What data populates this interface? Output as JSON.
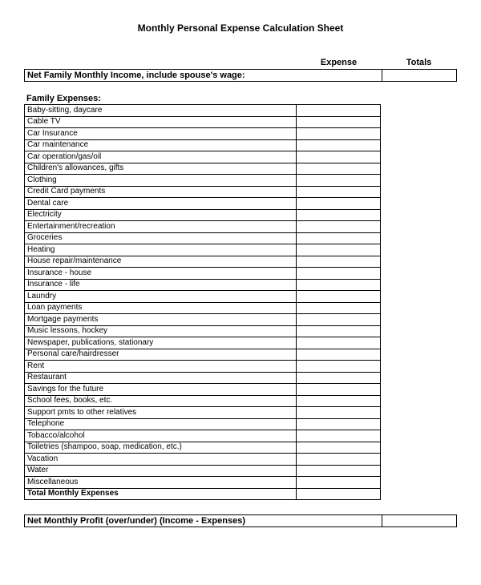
{
  "title": "Monthly Personal Expense Calculation Sheet",
  "headers": {
    "expense": "Expense",
    "totals": "Totals"
  },
  "income": {
    "label": "Net Family Monthly Income, include spouse's wage:"
  },
  "section": {
    "title": "Family Expenses:"
  },
  "expenses": [
    "Baby-sitting, daycare",
    "Cable TV",
    "Car Insurance",
    "Car maintenance",
    "Car operation/gas/oil",
    "Children's allowances, gifts",
    "Clothing",
    "Credit Card payments",
    "Dental care",
    "Electricity",
    "Entertainment/recreation",
    "Groceries",
    "Heating",
    "House repair/maintenance",
    "Insurance - house",
    "Insurance - life",
    "Laundry",
    "Loan payments",
    "Mortgage payments",
    "Music lessons, hockey",
    "Newspaper, publications, stationary",
    "Personal care/hairdresser",
    "Rent",
    "Restaurant",
    "Savings for the future",
    "School fees, books, etc.",
    "Support pmts to other relatives",
    "Telephone",
    "Tobacco/alcohol",
    "Toiletries (shampoo, soap, medication, etc.)",
    "Vacation",
    "Water",
    "Miscellaneous"
  ],
  "totals": {
    "monthlyExpenses": "Total Monthly Expenses"
  },
  "profit": {
    "label": "Net Monthly Profit (over/under)  (Income - Expenses)"
  },
  "style": {
    "type": "table",
    "background_color": "#ffffff",
    "text_color": "#000000",
    "border_color": "#000000",
    "font_family": "Arial",
    "title_fontsize": 12,
    "body_fontsize": 10,
    "col1_width": 340,
    "col2_width": 105,
    "col3_width": 95
  }
}
